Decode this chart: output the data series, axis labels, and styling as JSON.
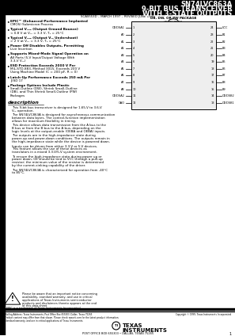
{
  "title_line1": "SN74LVC863A",
  "title_line2": "9-BIT BUS TRANSCEIVER",
  "title_line3": "WITH 3-STATE OUTPUTS",
  "subtitle": "SCAS553D – MARCH 1997 – REVISED JUNE 1999",
  "package_label": "DB, DW, OR PW PACKAGE",
  "package_sublabel": "(TOP VIEW)",
  "pin_left": [
    "OE/DSA1",
    "A0",
    "A1",
    "A2",
    "A3",
    "A4",
    "A5",
    "A6",
    "A7",
    "A8",
    "OE/DSA2",
    "OAO"
  ],
  "pin_right": [
    "VCC",
    "B1",
    "B2",
    "B3",
    "B4",
    "B5",
    "B6",
    "B7",
    "B8",
    "B9",
    "OE/DSB2",
    "OE/DSB1"
  ],
  "pin_left_nums": [
    1,
    2,
    3,
    4,
    5,
    6,
    7,
    8,
    9,
    10,
    11,
    12
  ],
  "pin_right_nums": [
    24,
    23,
    22,
    21,
    20,
    19,
    18,
    17,
    16,
    15,
    14,
    13
  ],
  "bullet_data": [
    [
      "EPIC™ (Enhanced-Performance Implanted",
      "CMOS) Submicron Process"
    ],
    [
      "Typical Vₒₕₚ (Output Ground Bounce)",
      "< 0.8 V at Vₜₓ = 3.3 V, Tₐ = 25°C"
    ],
    [
      "Typical Vₒᵤₚ (Output Vₜₓ Undershoot)",
      "> 2 V at Vₜₓ = 3.3 V, Tₐ = 25°C"
    ],
    [
      "Power Off Disables Outputs, Permitting",
      "Live Insertion"
    ],
    [
      "Supports Mixed-Mode Signal Operation on",
      "All Ports (5-V Input/Output Voltage With",
      "3.3-V Vₜₓ)"
    ],
    [
      "ESD Protection Exceeds 2000 V Per",
      "MIL-STD-883, Method 3015; Exceeds 200 V",
      "Using Machine Model (C = 200 pF, R = 0)"
    ],
    [
      "Latch-Up Performance Exceeds 250 mA Per",
      "JESD 17"
    ],
    [
      "Package Options Include Plastic",
      "Small-Outline (DW), Shrink Small-Outline",
      "(DB), and Thin Shrink Small-Outline (PW)",
      "Packages"
    ]
  ],
  "description_title": "description",
  "description_paragraphs": [
    "This 9-bit bus transceiver is designed for 1.65-V to 3.6-V Vₜₓ operation.",
    "The SN74LVC863A is designed for asynchronous communication between data bytes. The control-function implementation allows for maximum flexibility in timing.",
    "This device allows data transmission from the A bus to the B bus or from the B bus to the A bus, depending on the logic levels at the output-enable (OEBA and OEBA) inputs.",
    "The outputs are in the high-impedance state during power-up and power-down conditions. The outputs remain in the high-impedance state while the device is powered down.",
    "Inputs can be driven from either 3.3-V or 5-V devices. This feature allows the use of these devices as translators in a mixed 3.3-V/5-V system environment.",
    "To ensure the high-impedance state during power up or power down, OE should be tied to VCC through a pull-up resistor; the minimum value of the resistor is determined by the current-sinking capability of the driver.",
    "The SN74LVC863A is characterized for operation from -40°C to 85°C."
  ],
  "footer_warning": "Please be aware that an important notice concerning availability, standard warranty, and use in critical applications of Texas Instruments semiconductor products and disclaimers thereto appears at the end of this data sheet.",
  "footer_trademark": "EPIC is a trademark of Texas Instruments Incorporated",
  "footer_address": "POST OFFICE BOX 655303 • DALLAS, TEXAS 75265",
  "page_num": "1",
  "bg_color": "#ffffff"
}
